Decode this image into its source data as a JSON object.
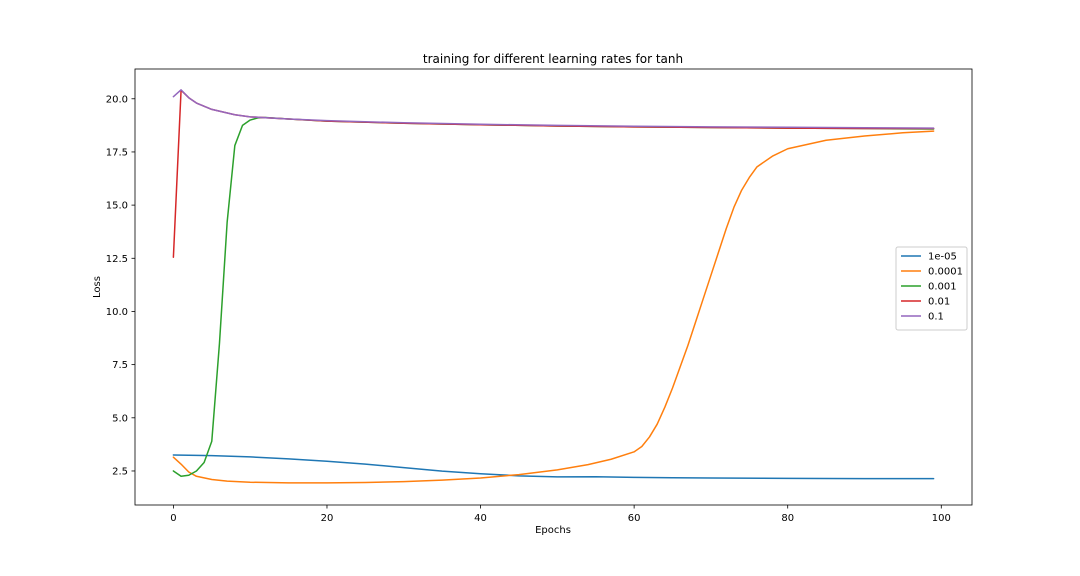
{
  "chart_data": {
    "type": "line",
    "title": "training for different learning rates for tanh",
    "xlabel": "Epochs",
    "ylabel": "Loss",
    "xlim": [
      -5,
      104
    ],
    "ylim": [
      0.9,
      21.4
    ],
    "xticks": [
      0,
      20,
      40,
      60,
      80,
      100
    ],
    "xtick_labels": [
      "0",
      "20",
      "40",
      "60",
      "80",
      "100"
    ],
    "yticks": [
      2.5,
      5.0,
      7.5,
      10.0,
      12.5,
      15.0,
      17.5,
      20.0
    ],
    "ytick_labels": [
      "2.5",
      "5.0",
      "7.5",
      "10.0",
      "12.5",
      "15.0",
      "17.5",
      "20.0"
    ],
    "grid": false,
    "legend_position": "center-right",
    "series": [
      {
        "name": "1e-05",
        "color": "#1f77b4",
        "points": [
          [
            0,
            3.25
          ],
          [
            5,
            3.22
          ],
          [
            10,
            3.16
          ],
          [
            15,
            3.07
          ],
          [
            20,
            2.96
          ],
          [
            25,
            2.82
          ],
          [
            30,
            2.66
          ],
          [
            35,
            2.49
          ],
          [
            40,
            2.37
          ],
          [
            45,
            2.27
          ],
          [
            50,
            2.22
          ],
          [
            55,
            2.23
          ],
          [
            60,
            2.2
          ],
          [
            65,
            2.18
          ],
          [
            70,
            2.17
          ],
          [
            80,
            2.15
          ],
          [
            90,
            2.14
          ],
          [
            99,
            2.14
          ]
        ]
      },
      {
        "name": "0.0001",
        "color": "#ff7f0e",
        "points": [
          [
            0,
            3.15
          ],
          [
            1,
            2.82
          ],
          [
            2,
            2.45
          ],
          [
            3,
            2.25
          ],
          [
            5,
            2.1
          ],
          [
            7,
            2.02
          ],
          [
            10,
            1.97
          ],
          [
            15,
            1.94
          ],
          [
            20,
            1.94
          ],
          [
            25,
            1.96
          ],
          [
            30,
            2.0
          ],
          [
            35,
            2.07
          ],
          [
            40,
            2.17
          ],
          [
            45,
            2.33
          ],
          [
            50,
            2.55
          ],
          [
            54,
            2.8
          ],
          [
            57,
            3.05
          ],
          [
            60,
            3.4
          ],
          [
            61,
            3.65
          ],
          [
            62,
            4.1
          ],
          [
            63,
            4.7
          ],
          [
            64,
            5.5
          ],
          [
            65,
            6.4
          ],
          [
            66,
            7.4
          ],
          [
            67,
            8.4
          ],
          [
            68,
            9.5
          ],
          [
            69,
            10.6
          ],
          [
            70,
            11.7
          ],
          [
            71,
            12.8
          ],
          [
            72,
            13.9
          ],
          [
            73,
            14.9
          ],
          [
            74,
            15.7
          ],
          [
            75,
            16.3
          ],
          [
            76,
            16.8
          ],
          [
            78,
            17.3
          ],
          [
            80,
            17.65
          ],
          [
            85,
            18.05
          ],
          [
            90,
            18.25
          ],
          [
            95,
            18.4
          ],
          [
            99,
            18.48
          ]
        ]
      },
      {
        "name": "0.001",
        "color": "#2ca02c",
        "points": [
          [
            0,
            2.5
          ],
          [
            1,
            2.25
          ],
          [
            2,
            2.3
          ],
          [
            3,
            2.5
          ],
          [
            4,
            2.9
          ],
          [
            5,
            3.9
          ],
          [
            6,
            8.5
          ],
          [
            7,
            14.2
          ],
          [
            8,
            17.8
          ],
          [
            9,
            18.75
          ],
          [
            10,
            19.0
          ],
          [
            11,
            19.1
          ],
          [
            12,
            19.12
          ],
          [
            15,
            19.05
          ],
          [
            20,
            18.95
          ],
          [
            30,
            18.85
          ],
          [
            40,
            18.78
          ],
          [
            50,
            18.72
          ],
          [
            60,
            18.68
          ],
          [
            70,
            18.65
          ],
          [
            80,
            18.62
          ],
          [
            90,
            18.6
          ],
          [
            99,
            18.58
          ]
        ]
      },
      {
        "name": "0.01",
        "color": "#d62728",
        "points": [
          [
            0,
            12.55
          ],
          [
            1,
            20.4
          ],
          [
            2,
            20.05
          ],
          [
            3,
            19.8
          ],
          [
            5,
            19.5
          ],
          [
            8,
            19.25
          ],
          [
            10,
            19.15
          ],
          [
            15,
            19.05
          ],
          [
            20,
            18.95
          ],
          [
            30,
            18.85
          ],
          [
            40,
            18.78
          ],
          [
            50,
            18.72
          ],
          [
            60,
            18.68
          ],
          [
            70,
            18.65
          ],
          [
            80,
            18.62
          ],
          [
            90,
            18.6
          ],
          [
            99,
            18.6
          ]
        ]
      },
      {
        "name": "0.1",
        "color": "#9467bd",
        "points": [
          [
            0,
            20.1
          ],
          [
            1,
            20.42
          ],
          [
            2,
            20.05
          ],
          [
            3,
            19.8
          ],
          [
            5,
            19.5
          ],
          [
            8,
            19.25
          ],
          [
            10,
            19.15
          ],
          [
            15,
            19.05
          ],
          [
            20,
            18.97
          ],
          [
            30,
            18.87
          ],
          [
            40,
            18.8
          ],
          [
            50,
            18.75
          ],
          [
            60,
            18.71
          ],
          [
            70,
            18.68
          ],
          [
            80,
            18.66
          ],
          [
            90,
            18.64
          ],
          [
            99,
            18.62
          ]
        ]
      }
    ]
  }
}
